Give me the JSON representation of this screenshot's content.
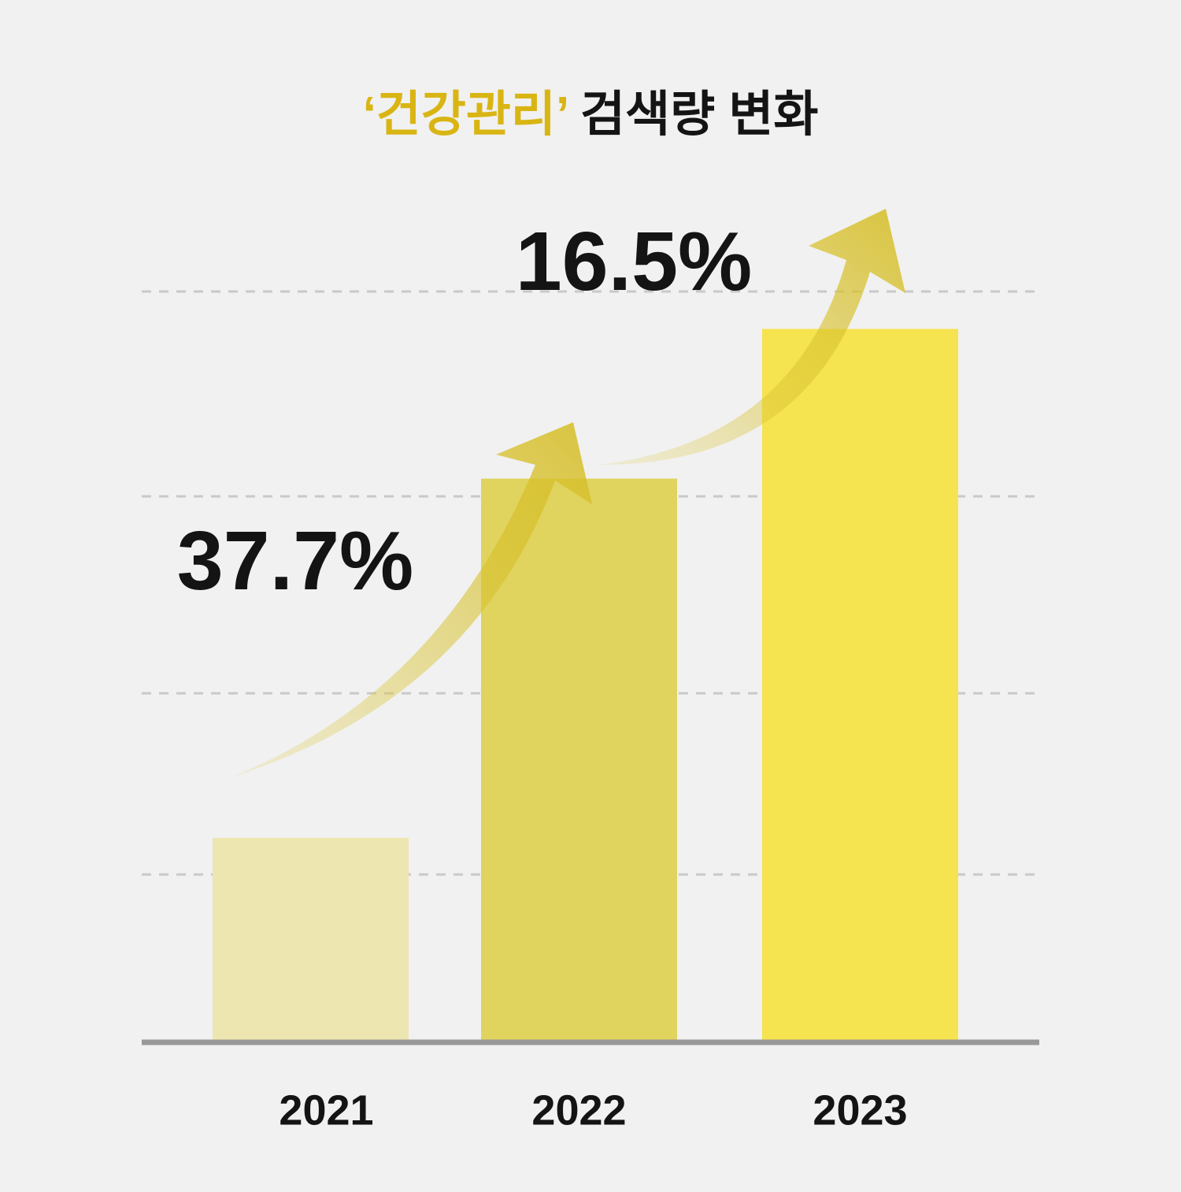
{
  "chart_data": {
    "type": "bar",
    "title": [
      "‘건강관리’",
      "검색량 변화"
    ],
    "title_colors": [
      "#d9b514",
      "#141414"
    ],
    "categories": [
      "2021",
      "2022",
      "2023"
    ],
    "values": [
      27,
      75,
      95
    ],
    "colors": [
      "#ede6b0",
      "#e0d35e",
      "#f5e34f"
    ],
    "ylim": [
      0,
      100
    ],
    "annotations": [
      "37.7%",
      "16.5%"
    ]
  }
}
